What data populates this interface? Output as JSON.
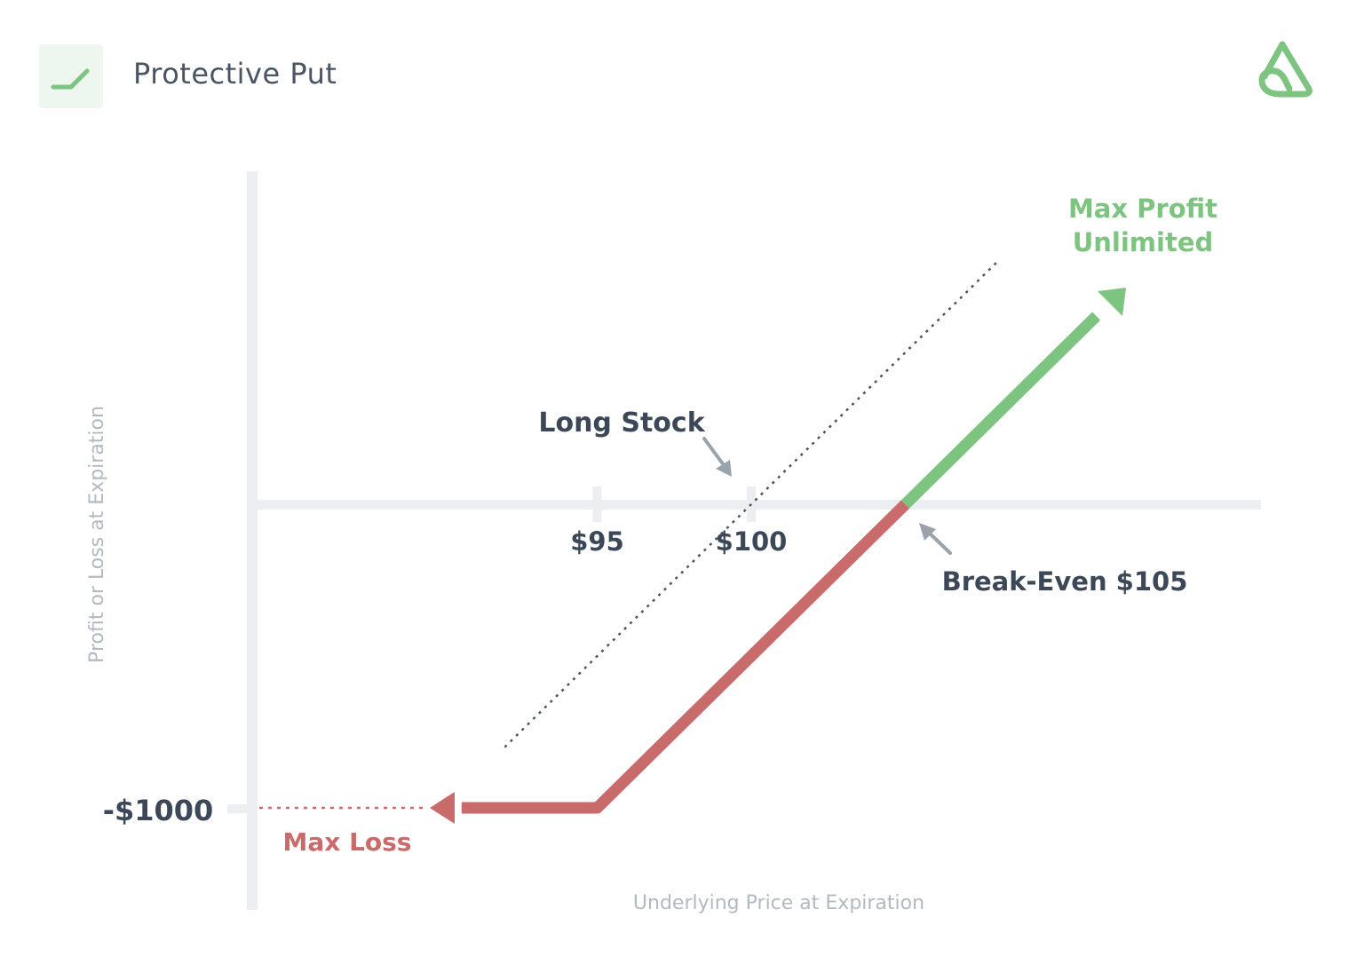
{
  "header": {
    "title": "Protective Put",
    "badge_icon": "rising-line-icon",
    "logo_icon": "brand-logo-icon"
  },
  "colors": {
    "profit": "#7cc47f",
    "loss": "#c96b6b",
    "axis": "#eceef1",
    "text_dark": "#3c4858",
    "text_muted": "#b3b9c1",
    "stock_line": "#4a5563"
  },
  "chart_data": {
    "type": "line",
    "xlabel": "Underlying Price at Expiration",
    "ylabel": "Profit or Loss at Expiration",
    "x_ticks": [
      "$95",
      "$100"
    ],
    "y_ticks": [
      "-$1000"
    ],
    "series": [
      {
        "name": "",
        "points": [
          [
            90,
            -1000
          ],
          [
            95,
            -1000
          ],
          [
            105,
            0
          ],
          [
            112,
            700
          ]
        ]
      },
      {
        "name": "Long Stock",
        "style": "dotted",
        "points": [
          [
            92,
            -800
          ],
          [
            108,
            800
          ]
        ]
      }
    ],
    "annotations": {
      "long_stock": "Long Stock",
      "break_even": "Break-Even $105",
      "max_profit_line1": "Max Profit",
      "max_profit_line2": "Unlimited",
      "max_loss": "Max Loss"
    }
  }
}
